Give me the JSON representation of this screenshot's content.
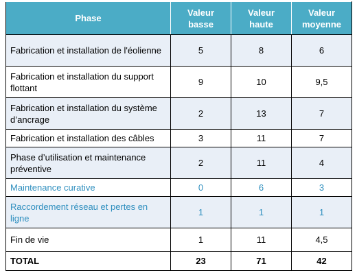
{
  "table": {
    "header": [
      "Phase",
      "Valeur basse",
      "Valeur haute",
      "Valeur moyenne"
    ],
    "rows": [
      [
        "Fabrication et installation de l'éolienne",
        5,
        8,
        6
      ],
      [
        "Fabrication et installation du support flottant",
        9,
        10,
        "9,5"
      ],
      [
        "Fabrication et installation du système d’ancrage",
        2,
        13,
        7
      ],
      [
        "Fabrication et installation des câbles",
        3,
        11,
        7
      ],
      [
        "Phase d’utilisation et maintenance préventive",
        2,
        11,
        4
      ],
      [
        "Maintenance curative",
        0,
        6,
        3
      ],
      [
        "Raccordement réseau et pertes en ligne",
        1,
        1,
        1
      ],
      [
        "Fin de vie",
        1,
        11,
        "4,5"
      ]
    ],
    "total": [
      "TOTAL",
      23,
      71,
      42
    ]
  }
}
